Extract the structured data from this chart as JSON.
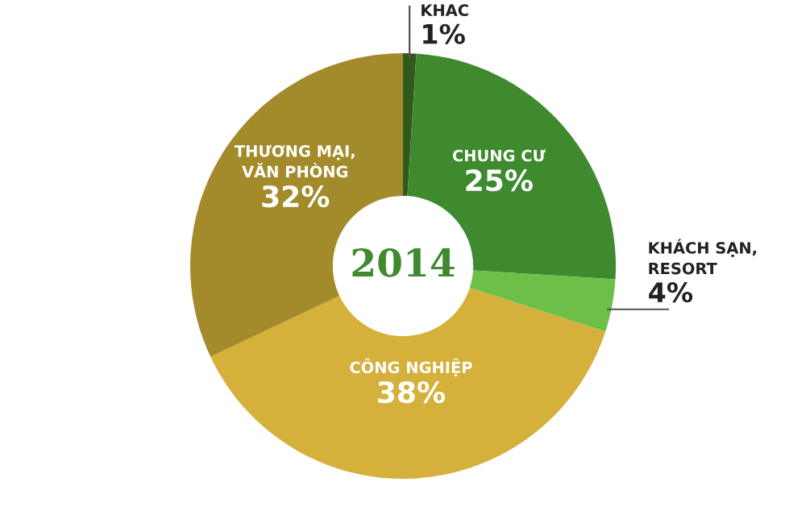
{
  "chart_data": {
    "type": "donut",
    "title": "2014",
    "categories": [
      "KHAC",
      "CHUNG CƯ",
      "KHÁCH SẠN,\nRESORT",
      "CÔNG NGHIỆP",
      "THƯƠNG MẠI,\nVĂN PHÒNG"
    ],
    "values": [
      1,
      25,
      4,
      38,
      32
    ],
    "value_labels": [
      "1%",
      "25%",
      "4%",
      "38%",
      "32%"
    ],
    "colors": [
      "#2f5a1c",
      "#3f8a2f",
      "#6cc04a",
      "#d5b03a",
      "#a38b2c"
    ],
    "legend": false
  }
}
